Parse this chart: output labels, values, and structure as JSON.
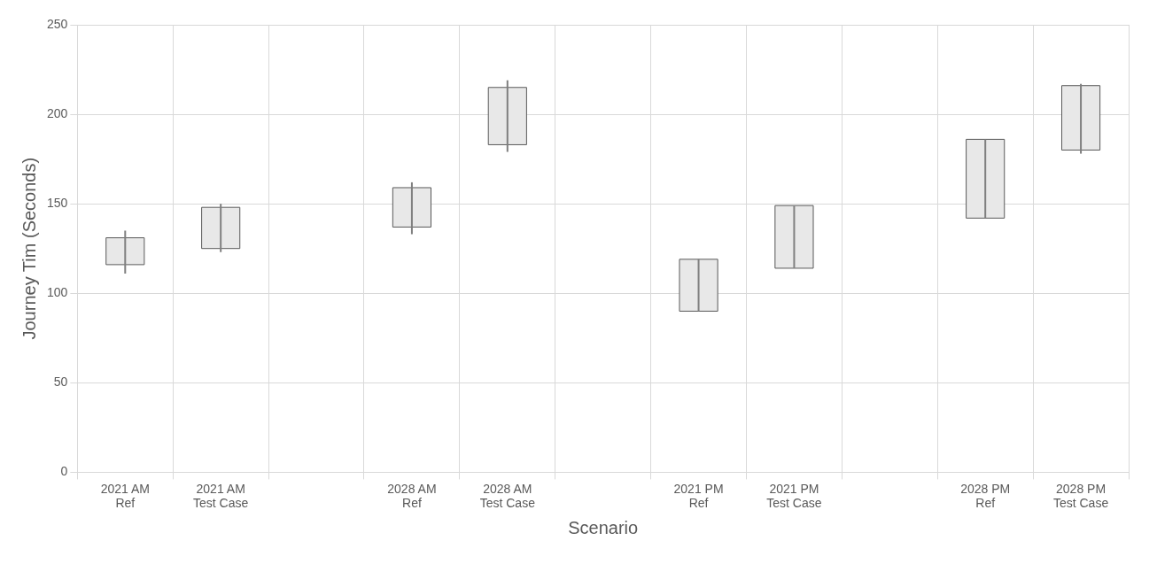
{
  "chart_data": {
    "type": "candlestick",
    "categories": [
      "2021 AM Ref",
      "2021 AM Test Case",
      null,
      "2028 AM Ref",
      "2028 AM Test Case",
      null,
      "2021 PM Ref",
      "2021 PM Test Case",
      null,
      "2028 PM Ref",
      "2028 PM Test Case"
    ],
    "ohlc": [
      [
        116,
        135,
        111,
        131
      ],
      [
        125,
        150,
        123,
        148
      ],
      null,
      [
        137,
        162,
        133,
        159
      ],
      [
        183,
        219,
        179,
        215
      ],
      null,
      [
        90,
        119,
        90,
        119
      ],
      [
        114,
        149,
        114,
        149
      ],
      null,
      [
        142,
        186,
        142,
        186
      ],
      [
        180,
        217,
        178,
        216
      ]
    ],
    "color": "#e8e8e8",
    "xlabel": "Scenario",
    "ylabel": "Journey Tim (Seconds)",
    "ylim": [
      0,
      250
    ],
    "yticks": [
      0,
      50,
      100,
      150,
      200,
      250
    ],
    "grid": true
  }
}
